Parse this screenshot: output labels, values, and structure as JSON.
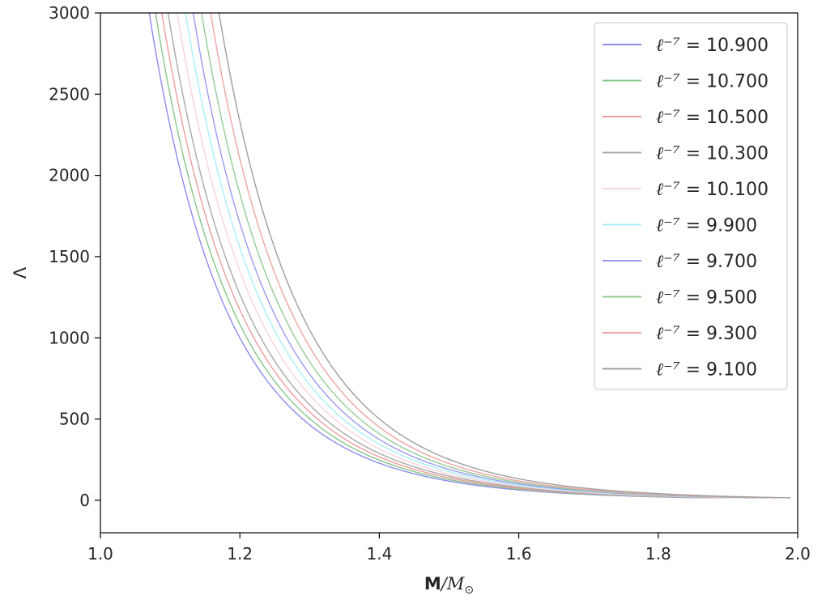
{
  "chart_data": {
    "type": "line",
    "xlabel": "M/M⊙",
    "xlabel_parts": {
      "bold": "M",
      "rest": "/M",
      "sub": "⊙"
    },
    "ylabel": "Λ",
    "xlim": [
      1.0,
      2.0
    ],
    "ylim": [
      -200,
      3000
    ],
    "x_ticks": [
      "1.0",
      "1.2",
      "1.4",
      "1.6",
      "1.8",
      "2.0"
    ],
    "y_ticks": [
      "0",
      "500",
      "1000",
      "1500",
      "2000",
      "2500",
      "3000"
    ],
    "legend_position": "top-right",
    "legend_prefix": "ℓ⁻⁷ =",
    "series": [
      {
        "name": "10.900",
        "color": "#8c8cf0",
        "m3000": 1.07,
        "mmax": 1.86
      },
      {
        "name": "10.700",
        "color": "#88c688",
        "m3000": 1.079,
        "mmax": 1.875
      },
      {
        "name": "10.500",
        "color": "#f09c9c",
        "m3000": 1.088,
        "mmax": 1.89
      },
      {
        "name": "10.300",
        "color": "#a8a8a8",
        "m3000": 1.097,
        "mmax": 1.905
      },
      {
        "name": "10.100",
        "color": "#f8d4dc",
        "m3000": 1.11,
        "mmax": 1.918
      },
      {
        "name": "9.900",
        "color": "#a8f0f8",
        "m3000": 1.122,
        "mmax": 1.93
      },
      {
        "name": "9.700",
        "color": "#9a9af2",
        "m3000": 1.133,
        "mmax": 1.942
      },
      {
        "name": "9.500",
        "color": "#94cc94",
        "m3000": 1.145,
        "mmax": 1.955
      },
      {
        "name": "9.300",
        "color": "#f0a4a4",
        "m3000": 1.158,
        "mmax": 1.968
      },
      {
        "name": "9.100",
        "color": "#9e9e9e",
        "m3000": 1.17,
        "mmax": 1.99
      }
    ]
  }
}
